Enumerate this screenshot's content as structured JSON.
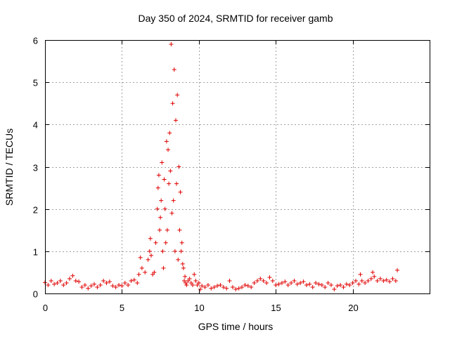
{
  "chart_data": {
    "type": "scatter",
    "title": "Day 350 of 2024, SRMTID for receiver gamb",
    "xlabel": "GPS time / hours",
    "ylabel": "SRMTID / TECUs",
    "xlim": [
      0,
      25
    ],
    "ylim": [
      0,
      6
    ],
    "x_ticks": [
      0,
      5,
      10,
      15,
      20
    ],
    "x_tick_labels": [
      "0",
      "5",
      "10",
      "15",
      "20"
    ],
    "y_ticks": [
      0,
      1,
      2,
      3,
      4,
      5,
      6
    ],
    "y_tick_labels": [
      "0",
      "1",
      "2",
      "3",
      "4",
      "5",
      "6"
    ],
    "grid": true,
    "marker": "plus",
    "series": [
      {
        "name": "SRMTID",
        "color": "#e00000",
        "x": [
          0.0,
          0.2,
          0.4,
          0.6,
          0.8,
          1.0,
          1.2,
          1.4,
          1.6,
          1.8,
          2.0,
          2.2,
          2.4,
          2.6,
          2.8,
          3.0,
          3.2,
          3.4,
          3.6,
          3.8,
          4.0,
          4.2,
          4.4,
          4.6,
          4.8,
          5.0,
          5.2,
          5.4,
          5.6,
          5.8,
          6.0,
          6.1,
          6.2,
          6.3,
          6.5,
          6.7,
          6.8,
          6.85,
          6.9,
          7.0,
          7.1,
          7.2,
          7.3,
          7.35,
          7.4,
          7.45,
          7.5,
          7.55,
          7.6,
          7.65,
          7.7,
          7.75,
          7.8,
          7.85,
          7.9,
          7.95,
          8.0,
          8.05,
          8.1,
          8.15,
          8.2,
          8.25,
          8.3,
          8.35,
          8.4,
          8.45,
          8.5,
          8.55,
          8.6,
          8.65,
          8.7,
          8.75,
          8.8,
          8.85,
          8.9,
          8.95,
          9.0,
          9.05,
          9.1,
          9.15,
          9.2,
          9.3,
          9.4,
          9.5,
          9.6,
          9.7,
          9.8,
          9.9,
          10.0,
          10.1,
          10.2,
          10.4,
          10.6,
          10.8,
          11.0,
          11.2,
          11.4,
          11.6,
          11.8,
          12.0,
          12.2,
          12.4,
          12.6,
          12.8,
          13.0,
          13.2,
          13.4,
          13.6,
          13.8,
          14.0,
          14.2,
          14.4,
          14.6,
          14.8,
          15.0,
          15.2,
          15.4,
          15.6,
          15.8,
          16.0,
          16.2,
          16.4,
          16.6,
          16.8,
          17.0,
          17.2,
          17.4,
          17.6,
          17.8,
          18.0,
          18.2,
          18.4,
          18.6,
          18.8,
          19.0,
          19.2,
          19.4,
          19.6,
          19.8,
          20.0,
          20.2,
          20.4,
          20.5,
          20.6,
          20.8,
          21.0,
          21.2,
          21.3,
          21.4,
          21.6,
          21.8,
          22.0,
          22.2,
          22.4,
          22.6,
          22.8,
          22.9
        ],
        "values": [
          0.26,
          0.2,
          0.3,
          0.22,
          0.25,
          0.3,
          0.2,
          0.25,
          0.35,
          0.42,
          0.3,
          0.28,
          0.15,
          0.2,
          0.12,
          0.18,
          0.22,
          0.15,
          0.2,
          0.3,
          0.25,
          0.28,
          0.18,
          0.15,
          0.2,
          0.18,
          0.25,
          0.2,
          0.3,
          0.32,
          0.25,
          0.45,
          0.85,
          0.6,
          0.5,
          0.8,
          1.0,
          1.3,
          0.9,
          0.45,
          0.5,
          1.2,
          2.0,
          2.5,
          2.8,
          1.5,
          1.8,
          2.2,
          3.1,
          1.0,
          0.6,
          2.7,
          2.0,
          1.2,
          3.6,
          1.5,
          3.4,
          2.6,
          3.8,
          2.9,
          5.9,
          1.9,
          4.5,
          2.2,
          5.3,
          1.0,
          4.1,
          2.6,
          4.7,
          0.8,
          3.0,
          1.5,
          2.4,
          1.0,
          1.2,
          0.7,
          0.6,
          0.3,
          0.4,
          0.25,
          0.2,
          0.3,
          0.35,
          0.25,
          0.2,
          0.45,
          0.3,
          0.2,
          0.25,
          0.1,
          0.18,
          0.15,
          0.2,
          0.12,
          0.15,
          0.18,
          0.2,
          0.15,
          0.12,
          0.3,
          0.15,
          0.1,
          0.12,
          0.15,
          0.2,
          0.18,
          0.15,
          0.25,
          0.3,
          0.35,
          0.3,
          0.25,
          0.38,
          0.3,
          0.2,
          0.22,
          0.25,
          0.28,
          0.2,
          0.25,
          0.3,
          0.22,
          0.25,
          0.28,
          0.2,
          0.22,
          0.15,
          0.25,
          0.22,
          0.2,
          0.15,
          0.25,
          0.2,
          0.1,
          0.18,
          0.2,
          0.15,
          0.22,
          0.2,
          0.25,
          0.3,
          0.22,
          0.45,
          0.3,
          0.25,
          0.3,
          0.35,
          0.5,
          0.4,
          0.3,
          0.35,
          0.3,
          0.32,
          0.28,
          0.35,
          0.3,
          0.55
        ]
      }
    ]
  }
}
